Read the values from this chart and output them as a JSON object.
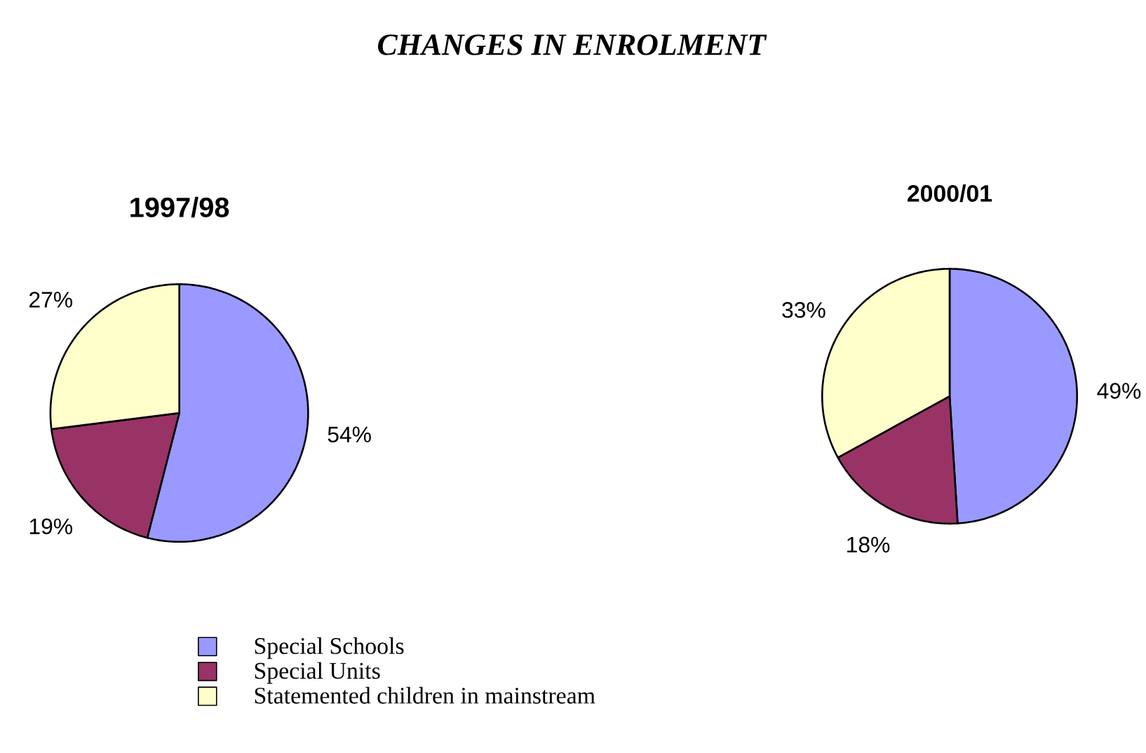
{
  "chart_data": [
    {
      "type": "pie",
      "title": "CHANGES IN ENROLMENT",
      "subtitle": "1997/98",
      "categories": [
        "Special Schools",
        "Special Units",
        "Statemented children in mainstream"
      ],
      "values": [
        54,
        19,
        27
      ],
      "value_labels": [
        "54%",
        "19%",
        "27%"
      ],
      "colors": [
        "#9999ff",
        "#993366",
        "#ffffcc"
      ],
      "legend": "bottom"
    },
    {
      "type": "pie",
      "title": "2000/01",
      "categories": [
        null,
        null,
        null
      ],
      "values": [
        49,
        18,
        33
      ],
      "value_labels": [
        "49%",
        "18%",
        "33%"
      ],
      "colors": [
        "#9999ff",
        "#993366",
        "#ffffcc"
      ]
    }
  ]
}
